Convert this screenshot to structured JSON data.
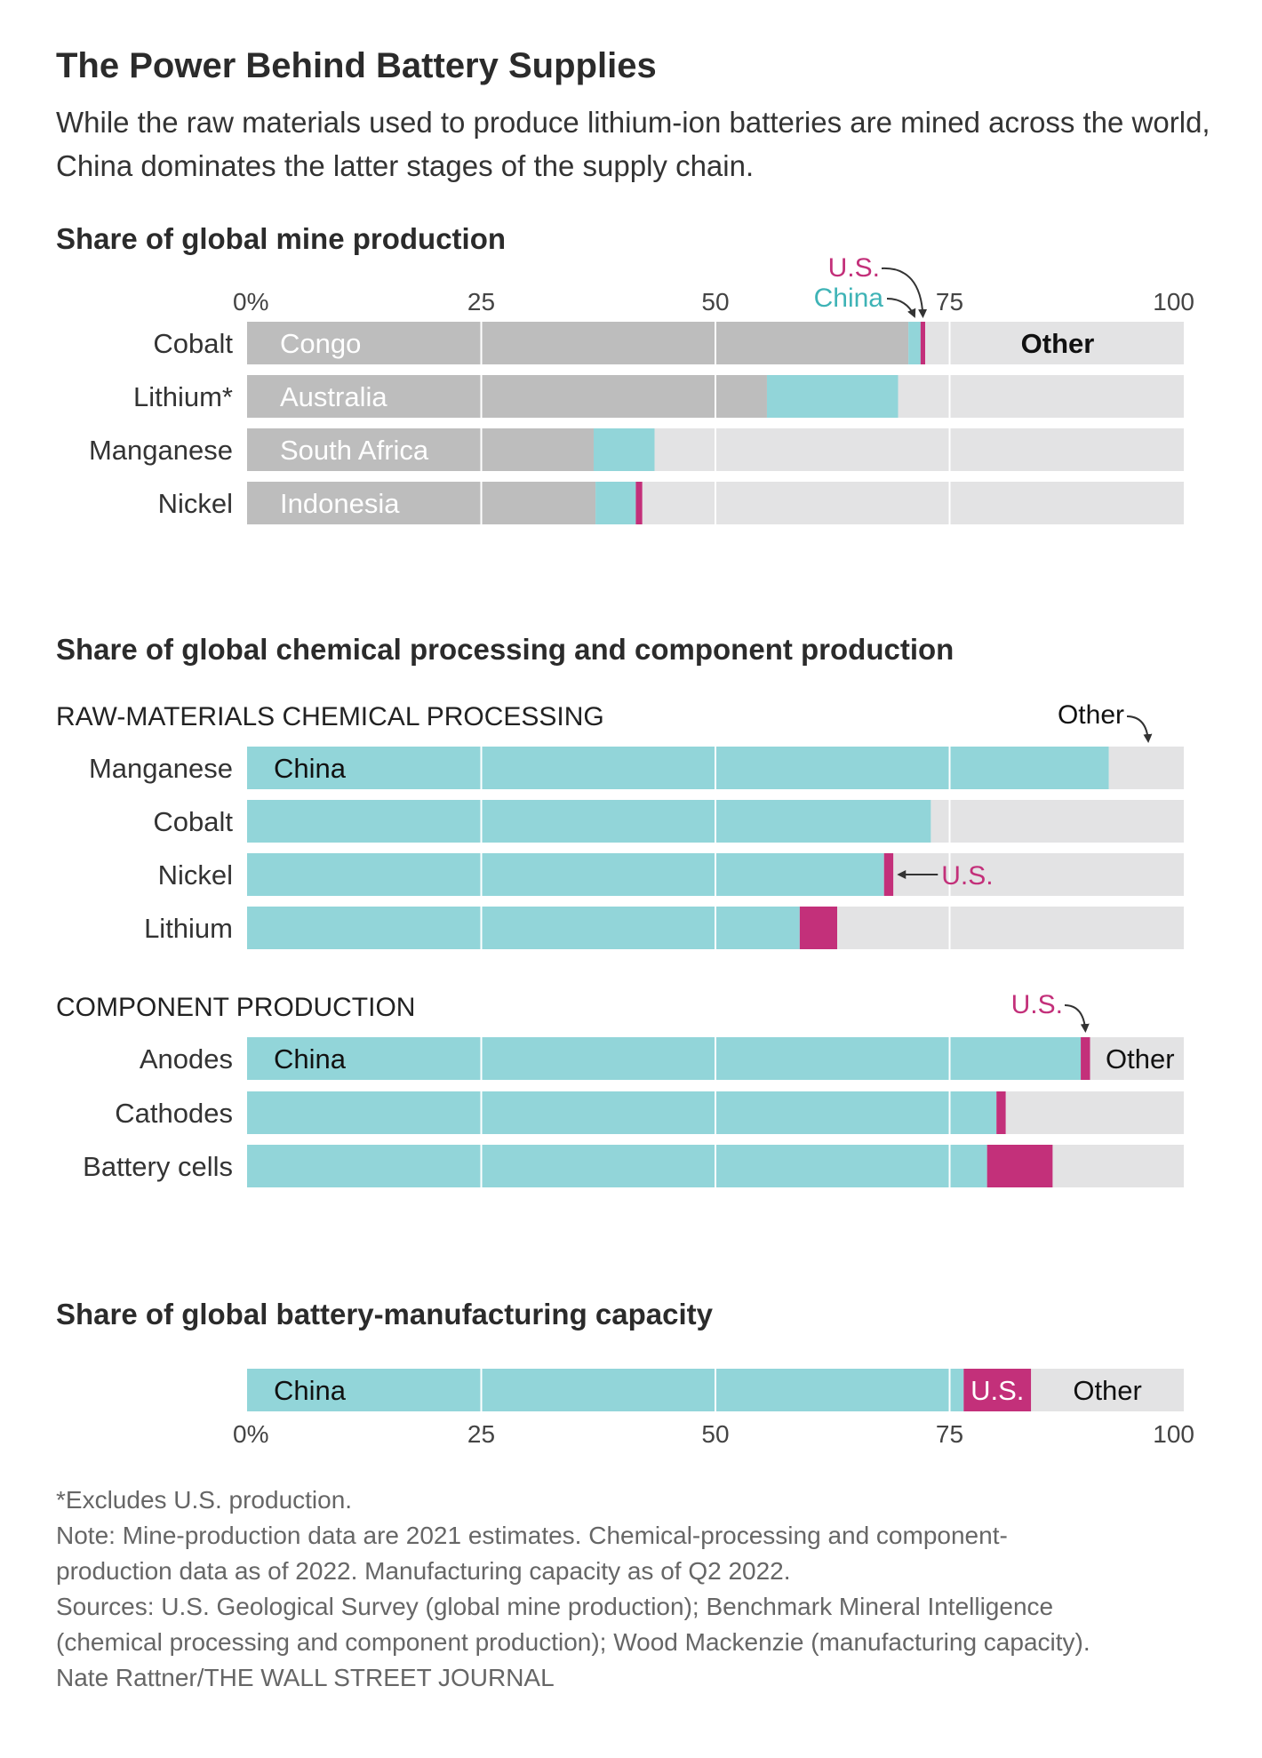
{
  "title": "The Power Behind Battery Supplies",
  "subtitle": "While the raw materials used to produce lithium-ion batteries are mined across the world, China dominates the latter stages of the supply chain.",
  "colors": {
    "top_producer": "#bdbdbd",
    "china": "#92d5d9",
    "us": "#c3307a",
    "other": "#e3e3e4",
    "china_label": "#3eb3b6"
  },
  "chart_data": [
    {
      "type": "bar",
      "stacked": true,
      "orientation": "horizontal",
      "title": "Share of global mine production",
      "xlim": [
        0,
        100
      ],
      "ticks": [
        "0%",
        "25",
        "50",
        "75",
        "100"
      ],
      "categories": [
        "Cobalt",
        "Lithium*",
        "Manganese",
        "Nickel"
      ],
      "top_producer_labels": [
        "Congo",
        "Australia",
        "South Africa",
        "Indonesia"
      ],
      "series": [
        {
          "name": "Top producer",
          "values": [
            70.6,
            55.5,
            37.0,
            37.2
          ]
        },
        {
          "name": "China",
          "values": [
            1.3,
            14.0,
            6.5,
            4.3
          ]
        },
        {
          "name": "U.S.",
          "values": [
            0.5,
            0,
            0,
            0.7
          ]
        },
        {
          "name": "Other",
          "values": [
            27.6,
            30.5,
            56.5,
            57.8
          ]
        }
      ],
      "annotations": {
        "us": "U.S.",
        "china": "China",
        "other": "Other"
      }
    },
    {
      "type": "bar",
      "stacked": true,
      "orientation": "horizontal",
      "title": "Share of global chemical processing and component production",
      "xlim": [
        0,
        100
      ],
      "groups": [
        {
          "label": "RAW-MATERIALS CHEMICAL PROCESSING",
          "categories": [
            "Manganese",
            "Cobalt",
            "Nickel",
            "Lithium"
          ],
          "series": [
            {
              "name": "China",
              "values": [
                92.0,
                73.0,
                68.0,
                59.0
              ]
            },
            {
              "name": "U.S.",
              "values": [
                0,
                0,
                1.0,
                4.0
              ]
            },
            {
              "name": "Other",
              "values": [
                8.0,
                27.0,
                31.0,
                37.0
              ]
            }
          ],
          "annotations": {
            "china": "China",
            "us": "U.S.",
            "other": "Other"
          }
        },
        {
          "label": "COMPONENT PRODUCTION",
          "categories": [
            "Anodes",
            "Cathodes",
            "Battery cells"
          ],
          "series": [
            {
              "name": "China",
              "values": [
                89.0,
                80.0,
                79.0
              ]
            },
            {
              "name": "U.S.",
              "values": [
                1.0,
                1.0,
                7.0
              ]
            },
            {
              "name": "Other",
              "values": [
                10.0,
                19.0,
                14.0
              ]
            }
          ],
          "annotations": {
            "china": "China",
            "us": "U.S.",
            "other": "Other"
          }
        }
      ]
    },
    {
      "type": "bar",
      "stacked": true,
      "orientation": "horizontal",
      "title": "Share of global battery-manufacturing capacity",
      "xlim": [
        0,
        100
      ],
      "ticks": [
        "0%",
        "25",
        "50",
        "75",
        "100"
      ],
      "categories": [
        ""
      ],
      "series": [
        {
          "name": "China",
          "values": [
            76.5
          ]
        },
        {
          "name": "U.S.",
          "values": [
            7.2
          ]
        },
        {
          "name": "Other",
          "values": [
            16.3
          ]
        }
      ],
      "annotations": {
        "china": "China",
        "us": "U.S.",
        "other": "Other"
      }
    }
  ],
  "notes": [
    "*Excludes U.S. production.",
    "Note: Mine-production data are 2021 estimates. Chemical-processing and component-",
    "production data as of 2022. Manufacturing capacity as of Q2 2022.",
    "Sources: U.S. Geological Survey (global mine production); Benchmark Mineral Intelligence",
    "(chemical processing and component production); Wood Mackenzie (manufacturing capacity).",
    "Nate Rattner/THE WALL STREET JOURNAL"
  ]
}
